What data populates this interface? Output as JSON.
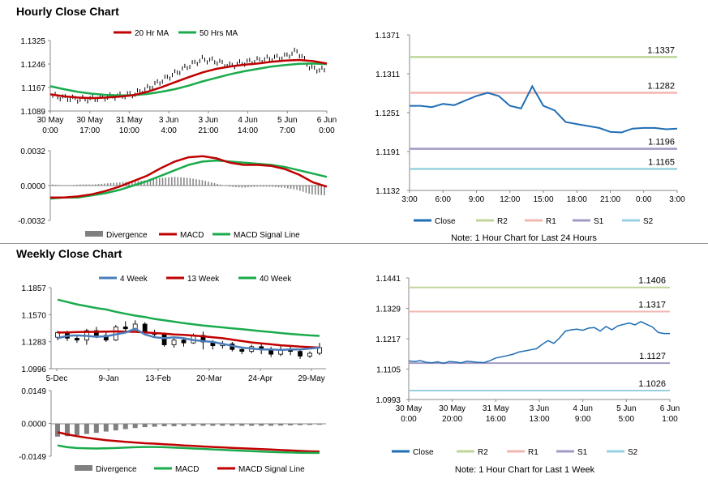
{
  "sections": {
    "hourly_title": "Hourly Close Chart",
    "weekly_title": "Weekly Close Chart"
  },
  "colors": {
    "ma20": "#c00000",
    "ma50": "#1aab4c",
    "close": "#1f6eb5",
    "r2": "#bfd59a",
    "r1": "#f2b7b1",
    "s1": "#a39ac4",
    "s2": "#98d0e1",
    "div": "#808080",
    "candle": "#000000",
    "weekly4": "#4a7ebb",
    "weekly13": "#c00000",
    "weekly40": "#1aab4c"
  },
  "chart_data": [
    {
      "id": "hourly_price",
      "type": "line",
      "title": "",
      "legend": [
        "20 Hr MA",
        "50 Hrs MA"
      ],
      "ylim": [
        1.1089,
        1.1325
      ],
      "yticks": [
        "1.1325",
        "1.1246",
        "1.1167",
        "1.1089"
      ],
      "xticks": [
        [
          "30 May",
          "0:00"
        ],
        [
          "30 May",
          "17:00"
        ],
        [
          "31 May",
          "10:00"
        ],
        [
          "3 Jun",
          "4:00"
        ],
        [
          "3 Jun",
          "21:00"
        ],
        [
          "4 Jun",
          "14:00"
        ],
        [
          "5 Jun",
          "7:00"
        ],
        [
          "6 Jun",
          "0:00"
        ]
      ],
      "ma20": [
        1.1145,
        1.1138,
        1.1134,
        1.1132,
        1.1134,
        1.1137,
        1.1142,
        1.1153,
        1.1168,
        1.1185,
        1.1202,
        1.1218,
        1.123,
        1.1238,
        1.1244,
        1.1248,
        1.1254,
        1.1258,
        1.126,
        1.1256,
        1.1248
      ],
      "ma50": [
        1.1172,
        1.1162,
        1.1153,
        1.1147,
        1.1143,
        1.1141,
        1.1142,
        1.1146,
        1.1153,
        1.1162,
        1.1174,
        1.1188,
        1.12,
        1.1212,
        1.1222,
        1.123,
        1.1238,
        1.1243,
        1.1247,
        1.1248,
        1.1246
      ],
      "price": [
        1.114,
        1.1132,
        1.1128,
        1.113,
        1.1136,
        1.114,
        1.1146,
        1.1165,
        1.119,
        1.1215,
        1.124,
        1.1262,
        1.1256,
        1.124,
        1.125,
        1.1258,
        1.1265,
        1.127,
        1.129,
        1.1232,
        1.1225
      ]
    },
    {
      "id": "hourly_macd",
      "type": "line",
      "legend": [
        "Divergence",
        "MACD",
        "MACD Signal Line"
      ],
      "ylim": [
        -0.0032,
        0.0032
      ],
      "yticks": [
        "0.0032",
        "0.0000",
        "-0.0032"
      ],
      "macd": [
        -0.0011,
        -0.0011,
        -0.001,
        -0.0008,
        -0.0005,
        -0.0001,
        0.0004,
        0.0009,
        0.0016,
        0.0022,
        0.0026,
        0.0027,
        0.0025,
        0.0021,
        0.0019,
        0.0019,
        0.0018,
        0.0015,
        0.001,
        0.0003,
        -0.0001
      ],
      "signal": [
        -0.0012,
        -0.0011,
        -0.0011,
        -0.0009,
        -0.0007,
        -0.0004,
        0.0,
        0.0004,
        0.0009,
        0.0014,
        0.0019,
        0.0022,
        0.0023,
        0.0022,
        0.0021,
        0.002,
        0.0019,
        0.0017,
        0.0014,
        0.0011,
        0.0008
      ],
      "divergence": [
        0.0001,
        0.0,
        0.0001,
        0.0001,
        0.0002,
        0.0003,
        0.0004,
        0.0005,
        0.0007,
        0.0008,
        0.0007,
        0.0005,
        0.0002,
        -0.0001,
        -0.0002,
        -0.0001,
        -0.0001,
        -0.0002,
        -0.0004,
        -0.0008,
        -0.0009
      ]
    },
    {
      "id": "hourly_24h",
      "type": "line",
      "legend": [
        "Close",
        "R2",
        "R1",
        "S1",
        "S2"
      ],
      "note": "Note: 1 Hour Chart for Last 24 Hours",
      "ylim": [
        1.1132,
        1.1371
      ],
      "yticks": [
        "1.1371",
        "1.1311",
        "1.1251",
        "1.1191",
        "1.1132"
      ],
      "xticks": [
        "3:00",
        "6:00",
        "9:00",
        "12:00",
        "15:00",
        "18:00",
        "21:00",
        "0:00",
        "3:00"
      ],
      "levels": {
        "r2": 1.1337,
        "r1": 1.1282,
        "s1": 1.1196,
        "s2": 1.1165
      },
      "level_labels": {
        "r2": "1.1337",
        "r1": "1.1282",
        "s1": "1.1196",
        "s2": "1.1165"
      },
      "x": [
        0,
        1,
        2,
        3,
        4,
        5,
        6,
        7,
        8,
        9,
        10,
        11,
        12,
        13,
        14,
        15,
        16,
        17,
        18,
        19,
        20,
        21,
        22,
        23,
        24
      ],
      "close": [
        1.1262,
        1.1262,
        1.126,
        1.1265,
        1.1263,
        1.127,
        1.1277,
        1.1282,
        1.1277,
        1.1262,
        1.1258,
        1.1292,
        1.1262,
        1.1255,
        1.1237,
        1.1234,
        1.1231,
        1.1228,
        1.1222,
        1.1221,
        1.1227,
        1.1228,
        1.1228,
        1.1226,
        1.1227
      ]
    },
    {
      "id": "weekly_price",
      "type": "candlestick",
      "legend": [
        "4 Week",
        "13 Week",
        "40 Week"
      ],
      "ylim": [
        1.0996,
        1.1857
      ],
      "yticks": [
        "1.1857",
        "1.1570",
        "1.1283",
        "1.0996"
      ],
      "xticks": [
        "5-Dec",
        "9-Jan",
        "13-Feb",
        "20-Mar",
        "24-Apr",
        "29-May"
      ],
      "ma4": [
        1.132,
        1.1345,
        1.135,
        1.1345,
        1.1335,
        1.134,
        1.136,
        1.138,
        1.142,
        1.136,
        1.133,
        1.132,
        1.133,
        1.132,
        1.13,
        1.129,
        1.128,
        1.126,
        1.124,
        1.122,
        1.121,
        1.12,
        1.12,
        1.1195,
        1.12,
        1.12,
        1.121,
        1.122
      ],
      "ma13": [
        1.138,
        1.1382,
        1.1385,
        1.1387,
        1.1388,
        1.139,
        1.1392,
        1.139,
        1.1388,
        1.1382,
        1.1375,
        1.1368,
        1.136,
        1.1355,
        1.1348,
        1.134,
        1.133,
        1.132,
        1.1305,
        1.129,
        1.1275,
        1.1265,
        1.1255,
        1.1245,
        1.1238,
        1.123,
        1.1225,
        1.122
      ],
      "ma40": [
        1.173,
        1.1705,
        1.168,
        1.166,
        1.164,
        1.1625,
        1.16,
        1.158,
        1.156,
        1.1545,
        1.1525,
        1.151,
        1.1495,
        1.148,
        1.1468,
        1.1455,
        1.1445,
        1.1435,
        1.1425,
        1.1415,
        1.1405,
        1.1395,
        1.1385,
        1.1375,
        1.1365,
        1.1358,
        1.135,
        1.1345
      ],
      "candles": [
        [
          1.133,
          1.138,
          1.13,
          1.14
        ],
        [
          1.138,
          1.132,
          1.129,
          1.14
        ],
        [
          1.132,
          1.13,
          1.127,
          1.134
        ],
        [
          1.13,
          1.14,
          1.125,
          1.142
        ],
        [
          1.14,
          1.135,
          1.132,
          1.144
        ],
        [
          1.135,
          1.13,
          1.128,
          1.138
        ],
        [
          1.13,
          1.144,
          1.129,
          1.146
        ],
        [
          1.144,
          1.142,
          1.138,
          1.15
        ],
        [
          1.142,
          1.147,
          1.14,
          1.151
        ],
        [
          1.147,
          1.138,
          1.136,
          1.149
        ],
        [
          1.138,
          1.136,
          1.133,
          1.141
        ],
        [
          1.136,
          1.125,
          1.123,
          1.138
        ],
        [
          1.125,
          1.13,
          1.122,
          1.132
        ],
        [
          1.13,
          1.127,
          1.123,
          1.131
        ],
        [
          1.127,
          1.135,
          1.126,
          1.137
        ],
        [
          1.135,
          1.128,
          1.12,
          1.139
        ],
        [
          1.128,
          1.124,
          1.12,
          1.13
        ],
        [
          1.124,
          1.126,
          1.121,
          1.129
        ],
        [
          1.126,
          1.12,
          1.118,
          1.128
        ],
        [
          1.12,
          1.118,
          1.115,
          1.123
        ],
        [
          1.118,
          1.123,
          1.116,
          1.125
        ],
        [
          1.123,
          1.12,
          1.115,
          1.126
        ],
        [
          1.12,
          1.115,
          1.112,
          1.123
        ],
        [
          1.115,
          1.12,
          1.113,
          1.125
        ],
        [
          1.12,
          1.118,
          1.114,
          1.123
        ],
        [
          1.118,
          1.113,
          1.11,
          1.12
        ],
        [
          1.113,
          1.116,
          1.111,
          1.118
        ],
        [
          1.116,
          1.122,
          1.114,
          1.127
        ]
      ]
    },
    {
      "id": "weekly_macd",
      "type": "bar",
      "legend": [
        "Divergence",
        "MACD",
        "MACD Signal Line"
      ],
      "ylim": [
        -0.0149,
        0.0149
      ],
      "yticks": [
        "0.0149",
        "0.0000",
        "-0.0149"
      ],
      "macd": [
        -0.01,
        -0.0108,
        -0.0112,
        -0.0113,
        -0.0114,
        -0.0113,
        -0.0112,
        -0.011,
        -0.0108,
        -0.0107,
        -0.0107,
        -0.0108,
        -0.011,
        -0.0112,
        -0.0114,
        -0.0116,
        -0.0118,
        -0.012,
        -0.0122,
        -0.0124,
        -0.0126,
        -0.0128,
        -0.013,
        -0.0131,
        -0.0132,
        -0.0133,
        -0.0134,
        -0.0134
      ],
      "signal": [
        -0.004,
        -0.005,
        -0.0058,
        -0.0065,
        -0.0071,
        -0.0076,
        -0.008,
        -0.0084,
        -0.0087,
        -0.009,
        -0.0092,
        -0.0095,
        -0.0097,
        -0.01,
        -0.0102,
        -0.0105,
        -0.0107,
        -0.0109,
        -0.0111,
        -0.0113,
        -0.0115,
        -0.0117,
        -0.0119,
        -0.0121,
        -0.0123,
        -0.0125,
        -0.0127,
        -0.0128
      ],
      "divergence": [
        -0.006,
        -0.0058,
        -0.0054,
        -0.0048,
        -0.0043,
        -0.0037,
        -0.0032,
        -0.0026,
        -0.0021,
        -0.0017,
        -0.0015,
        -0.0013,
        -0.0013,
        -0.0012,
        -0.0012,
        -0.0011,
        -0.0011,
        -0.0011,
        -0.0011,
        -0.0011,
        -0.0011,
        -0.0011,
        -0.0011,
        -0.001,
        -0.0009,
        -0.0008,
        -0.0007,
        -0.0006
      ]
    },
    {
      "id": "weekly_1w",
      "type": "line",
      "legend": [
        "Close",
        "R2",
        "R1",
        "S1",
        "S2"
      ],
      "note": "Note: 1 Hour Chart for Last 1 Week",
      "ylim": [
        1.0993,
        1.1441
      ],
      "yticks": [
        "1.1441",
        "1.1329",
        "1.1217",
        "1.1105",
        "1.0993"
      ],
      "xticks": [
        [
          "30 May",
          "0:00"
        ],
        [
          "30 May",
          "20:00"
        ],
        [
          "31 May",
          "16:00"
        ],
        [
          "3 Jun",
          "13:00"
        ],
        [
          "4 Jun",
          "9:00"
        ],
        [
          "5 Jun",
          "5:00"
        ],
        [
          "6 Jun",
          "1:00"
        ]
      ],
      "levels": {
        "r2": 1.1406,
        "r1": 1.1317,
        "s1": 1.1127,
        "s2": 1.1026
      },
      "level_labels": {
        "r2": "1.1406",
        "r1": "1.1317",
        "s1": "1.1127",
        "s2": "1.1026"
      },
      "close": [
        1.1135,
        1.1133,
        1.1136,
        1.113,
        1.1128,
        1.1132,
        1.1126,
        1.1133,
        1.1131,
        1.1128,
        1.1134,
        1.1132,
        1.113,
        1.1129,
        1.1136,
        1.1146,
        1.115,
        1.1155,
        1.116,
        1.1168,
        1.1172,
        1.1176,
        1.118,
        1.1196,
        1.121,
        1.12,
        1.122,
        1.1245,
        1.125,
        1.1252,
        1.1248,
        1.1256,
        1.1258,
        1.1245,
        1.1262,
        1.125,
        1.1264,
        1.127,
        1.1275,
        1.1268,
        1.128,
        1.127,
        1.126,
        1.124,
        1.1236,
        1.1236
      ]
    }
  ]
}
